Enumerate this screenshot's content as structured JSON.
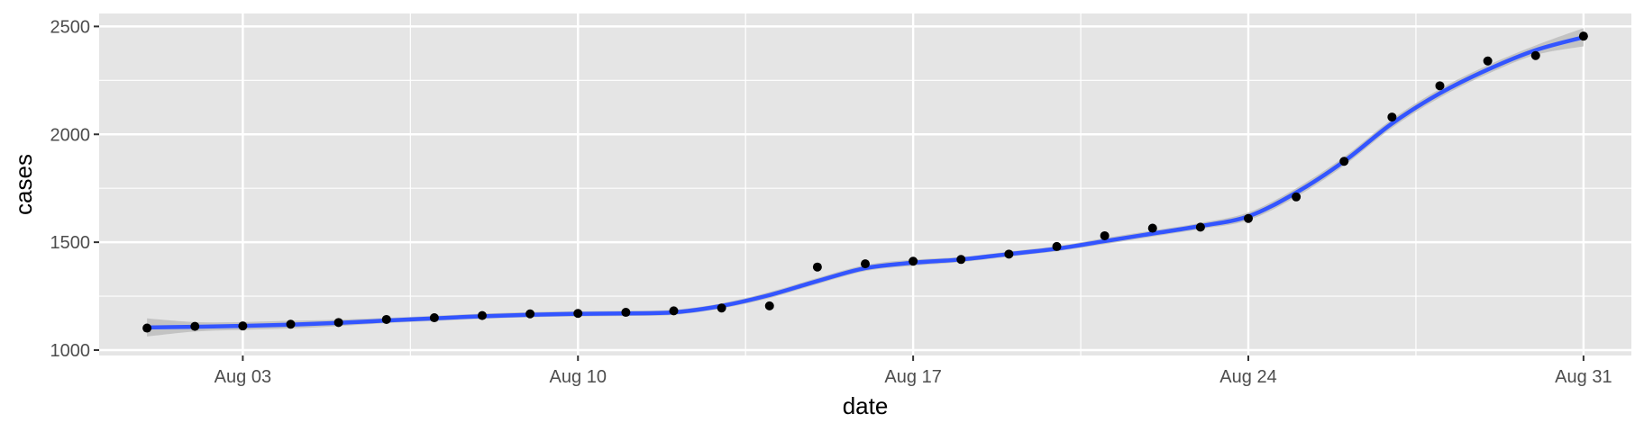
{
  "chart_data": {
    "type": "scatter",
    "xlabel": "date",
    "ylabel": "cases",
    "xlim": [
      "2020-07-31",
      "2020-09-01"
    ],
    "ylim": [
      975,
      2560
    ],
    "grid": true,
    "x_ticks": [
      {
        "date": "2020-08-03",
        "label": "Aug 03"
      },
      {
        "date": "2020-08-10",
        "label": "Aug 10"
      },
      {
        "date": "2020-08-17",
        "label": "Aug 17"
      },
      {
        "date": "2020-08-24",
        "label": "Aug 24"
      },
      {
        "date": "2020-08-31",
        "label": "Aug 31"
      }
    ],
    "y_ticks": [
      1000,
      1500,
      2000,
      2500
    ],
    "colors": {
      "panel": "#e5e5e5",
      "grid": "#ffffff",
      "points": "#000000",
      "smooth_line": "#3355ff",
      "ribbon": "#bdbdbd"
    },
    "series": [
      {
        "type": "scatter",
        "x": [
          "2020-08-01",
          "2020-08-02",
          "2020-08-03",
          "2020-08-04",
          "2020-08-05",
          "2020-08-06",
          "2020-08-07",
          "2020-08-08",
          "2020-08-09",
          "2020-08-10",
          "2020-08-11",
          "2020-08-12",
          "2020-08-13",
          "2020-08-14",
          "2020-08-15",
          "2020-08-16",
          "2020-08-17",
          "2020-08-18",
          "2020-08-19",
          "2020-08-20",
          "2020-08-21",
          "2020-08-22",
          "2020-08-23",
          "2020-08-24",
          "2020-08-25",
          "2020-08-26",
          "2020-08-27",
          "2020-08-28",
          "2020-08-29",
          "2020-08-30",
          "2020-08-31"
        ],
        "y": [
          1102,
          1110,
          1112,
          1120,
          1128,
          1142,
          1150,
          1160,
          1168,
          1170,
          1175,
          1182,
          1195,
          1205,
          1385,
          1400,
          1412,
          1420,
          1445,
          1480,
          1530,
          1565,
          1570,
          1610,
          1710,
          1875,
          2080,
          2225,
          2340,
          2365,
          2455
        ]
      },
      {
        "type": "smooth",
        "x": [
          "2020-08-01",
          "2020-08-02",
          "2020-08-03",
          "2020-08-04",
          "2020-08-05",
          "2020-08-06",
          "2020-08-07",
          "2020-08-08",
          "2020-08-09",
          "2020-08-10",
          "2020-08-11",
          "2020-08-12",
          "2020-08-13",
          "2020-08-14",
          "2020-08-15",
          "2020-08-16",
          "2020-08-17",
          "2020-08-18",
          "2020-08-19",
          "2020-08-20",
          "2020-08-21",
          "2020-08-22",
          "2020-08-23",
          "2020-08-24",
          "2020-08-25",
          "2020-08-26",
          "2020-08-27",
          "2020-08-28",
          "2020-08-29",
          "2020-08-30",
          "2020-08-31"
        ],
        "y": [
          1105,
          1108,
          1112,
          1118,
          1126,
          1137,
          1147,
          1157,
          1164,
          1168,
          1170,
          1175,
          1205,
          1255,
          1320,
          1380,
          1405,
          1420,
          1445,
          1470,
          1505,
          1540,
          1575,
          1620,
          1730,
          1875,
          2050,
          2190,
          2300,
          2390,
          2450
        ],
        "ribbon_halfwidth": [
          42,
          22,
          18,
          18,
          15,
          12,
          12,
          12,
          12,
          12,
          12,
          12,
          12,
          14,
          14,
          14,
          14,
          12,
          12,
          12,
          14,
          14,
          14,
          18,
          20,
          20,
          20,
          20,
          20,
          22,
          42
        ]
      }
    ]
  }
}
